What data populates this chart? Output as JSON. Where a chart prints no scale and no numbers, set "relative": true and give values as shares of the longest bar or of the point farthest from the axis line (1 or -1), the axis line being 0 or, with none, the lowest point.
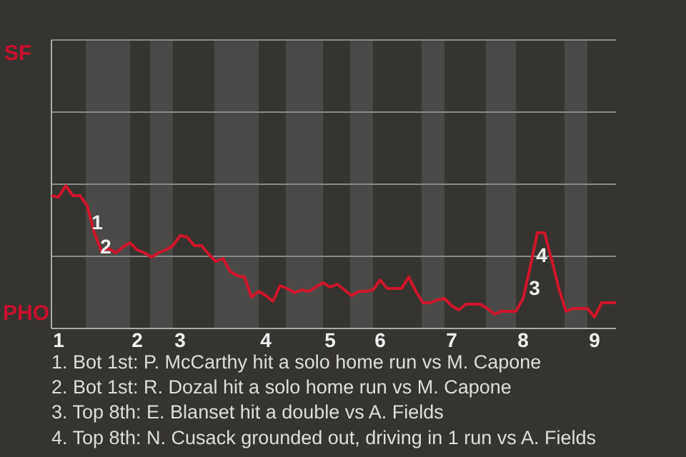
{
  "chart_data": {
    "type": "line",
    "relative": true,
    "categories": [
      null,
      "1",
      null,
      null,
      null,
      null,
      null,
      null,
      null,
      null,
      null,
      null,
      "2",
      null,
      null,
      null,
      null,
      null,
      "3",
      null,
      null,
      null,
      null,
      null,
      null,
      null,
      null,
      null,
      null,
      null,
      "4",
      null,
      null,
      null,
      null,
      null,
      null,
      null,
      null,
      "5",
      null,
      null,
      null,
      null,
      null,
      null,
      "6",
      null,
      null,
      null,
      null,
      null,
      null,
      null,
      null,
      null,
      "7",
      null,
      null,
      null,
      null,
      null,
      null,
      null,
      null,
      null,
      "8",
      null,
      null,
      null,
      null,
      null,
      null,
      null,
      null,
      null,
      "9",
      null,
      null,
      null
    ],
    "series": [
      {
        "color": "#d0152b",
        "values": [
          0.93,
          0.92,
          1,
          0.93,
          0.93,
          0.86,
          0.67,
          0.54,
          0.56,
          0.53,
          0.57,
          0.6,
          0.55,
          0.53,
          0.5,
          0.53,
          0.55,
          0.58,
          0.65,
          0.64,
          0.58,
          0.58,
          0.52,
          0.47,
          0.49,
          0.4,
          0.37,
          0.36,
          0.22,
          0.26,
          0.23,
          0.19,
          0.3,
          0.28,
          0.25,
          0.27,
          0.26,
          0.29,
          0.32,
          0.29,
          0.31,
          0.27,
          0.23,
          0.26,
          0.26,
          0.27,
          0.34,
          0.28,
          0.28,
          0.28,
          0.36,
          0.26,
          0.18,
          0.18,
          0.2,
          0.21,
          0.16,
          0.13,
          0.17,
          0.17,
          0.17,
          0.14,
          0.1,
          0.12,
          0.12,
          0.12,
          0.21,
          0.43,
          0.67,
          0.67,
          0.48,
          0.28,
          0.12,
          0.14,
          0.14,
          0.14,
          0.08,
          0.18,
          0.18,
          0.18
        ]
      }
    ],
    "marker": "none",
    "line_style": "solid",
    "ref_lines": [
      {
        "axis": "y",
        "value": 0.505,
        "color": "#8a8886"
      },
      {
        "axis": "y",
        "value": 1.01,
        "color": "#8a8886"
      },
      {
        "axis": "y",
        "value": 1.515,
        "color": "#8a8886"
      },
      {
        "axis": "y",
        "value": 2.02,
        "color": "#8a8886"
      }
    ],
    "annotations": [
      "SF",
      "PHO",
      "1",
      "2",
      "3",
      "4",
      "1. Bot 1st: P. McCarthy hit a solo home run vs M. Capone",
      "2. Bot 1st: R. Dozal hit a solo home run vs M. Capone",
      "3. Top 8th: E. Blanset hit a double vs A. Fields",
      "4. Top 8th: N. Cusack grounded out, driving in 1 run vs A. Fields"
    ]
  }
}
